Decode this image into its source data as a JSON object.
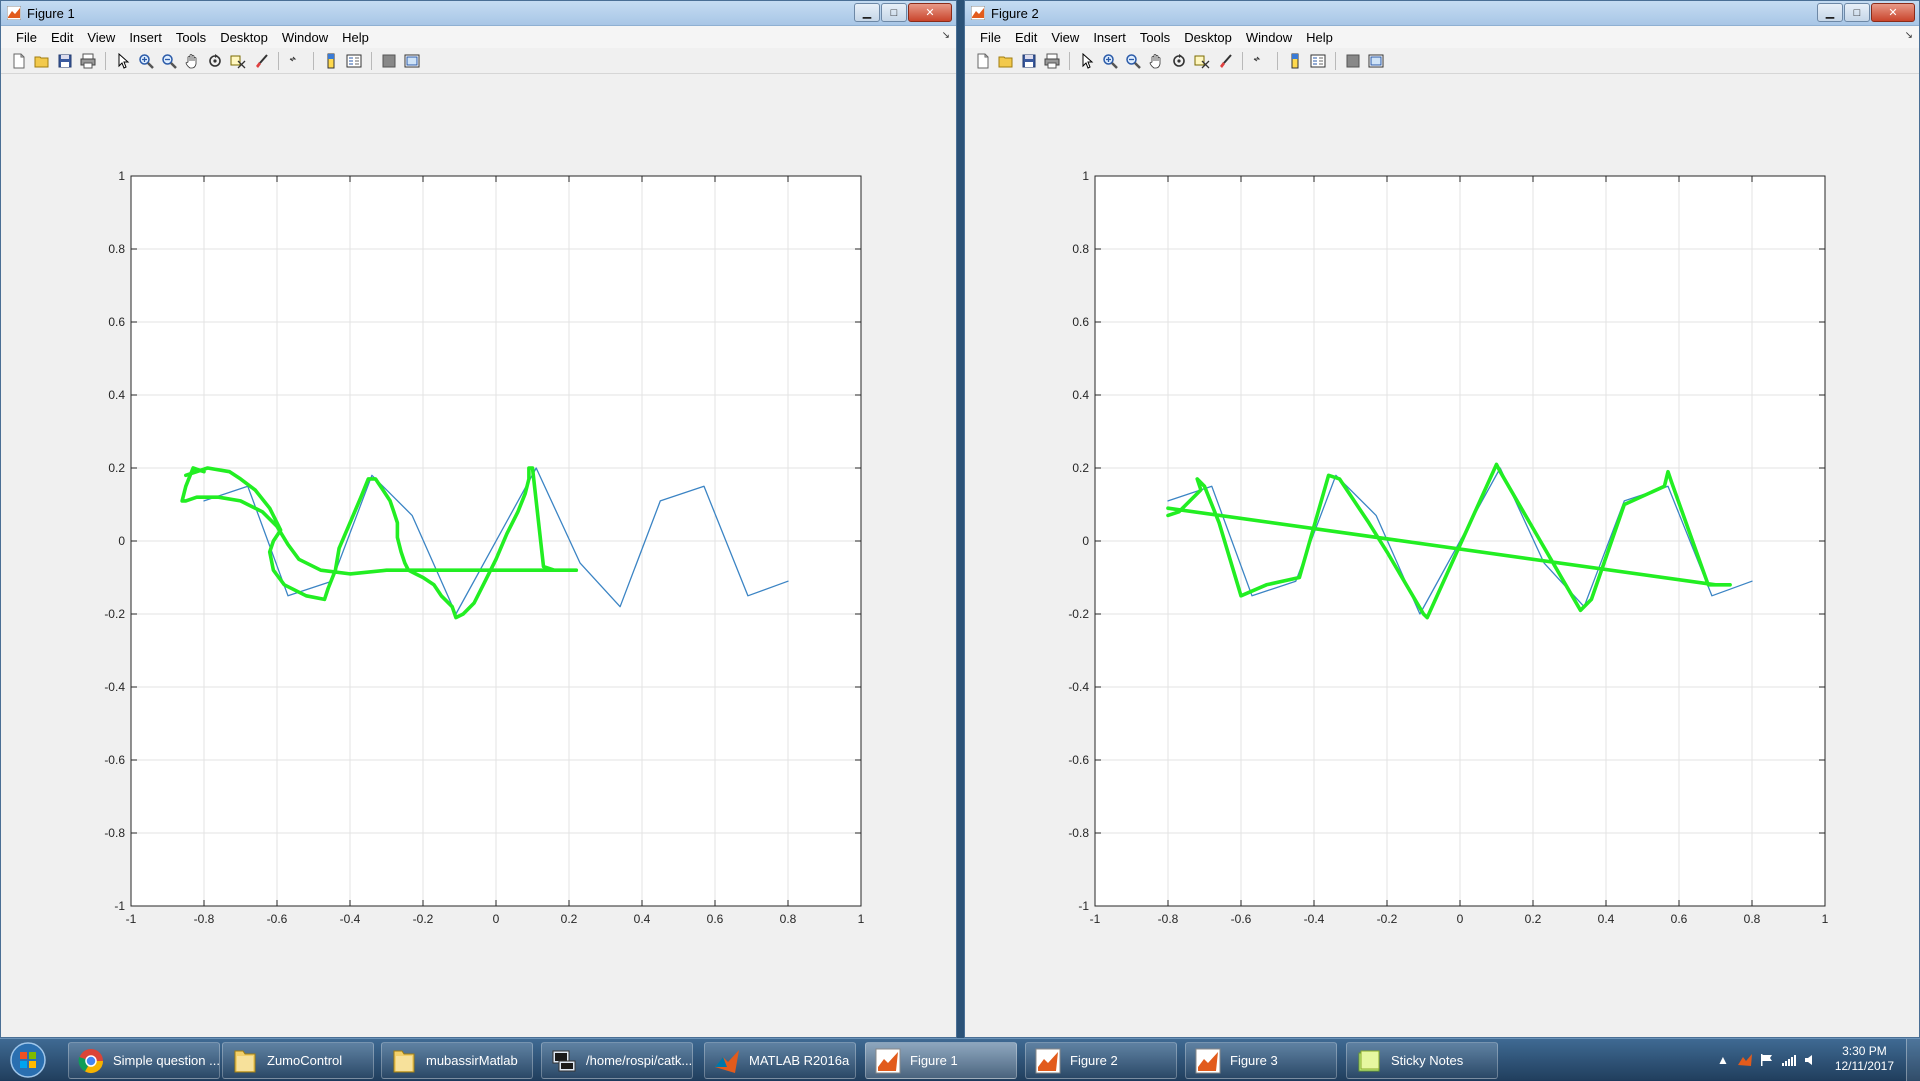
{
  "windows": [
    {
      "title": "Figure 1",
      "menu": [
        "File",
        "Edit",
        "View",
        "Insert",
        "Tools",
        "Desktop",
        "Window",
        "Help"
      ]
    },
    {
      "title": "Figure 2",
      "menu": [
        "File",
        "Edit",
        "View",
        "Insert",
        "Tools",
        "Desktop",
        "Window",
        "Help"
      ]
    }
  ],
  "toolbar_icons": [
    "new-figure-icon",
    "open-file-icon",
    "save-icon",
    "print-icon",
    "pointer-icon",
    "zoom-in-icon",
    "zoom-out-icon",
    "pan-icon",
    "rotate-icon",
    "data-cursor-icon",
    "brush-icon",
    "link-plot-icon",
    "colorbar-icon",
    "legend-icon",
    "hide-plot-tools-icon",
    "show-plot-tools-icon"
  ],
  "colors": {
    "blue_series": "#3b84c4",
    "green_series": "#22ee22",
    "axes_bg": "#ffffff",
    "grid": "#e3e3e3"
  },
  "chart_data": [
    {
      "type": "line",
      "xlim": [
        -1,
        1
      ],
      "ylim": [
        -1,
        1
      ],
      "xticks": [
        "-1",
        "-0.8",
        "-0.6",
        "-0.4",
        "-0.2",
        "0",
        "0.2",
        "0.4",
        "0.6",
        "0.8",
        "1"
      ],
      "yticks": [
        "1",
        "0.8",
        "0.6",
        "0.4",
        "0.2",
        "0",
        "-0.2",
        "-0.4",
        "-0.6",
        "-0.8",
        "-1"
      ],
      "grid": true,
      "series": [
        {
          "color": "blue",
          "x": [
            -0.8,
            -0.68,
            -0.57,
            -0.45,
            -0.34,
            -0.23,
            -0.11,
            0.11,
            0.23,
            0.34,
            0.45,
            0.57,
            0.69,
            0.8
          ],
          "y": [
            0.11,
            0.15,
            -0.15,
            -0.11,
            0.18,
            0.07,
            -0.2,
            0.2,
            -0.06,
            -0.18,
            0.11,
            0.15,
            -0.15,
            -0.11
          ]
        },
        {
          "color": "green",
          "x": [
            -0.85,
            -0.79,
            -0.73,
            -0.7,
            -0.66,
            -0.62,
            -0.6,
            -0.59,
            -0.61,
            -0.62,
            -0.61,
            -0.58,
            -0.52,
            -0.47,
            -0.46,
            -0.44,
            -0.43,
            -0.4,
            -0.37,
            -0.35,
            -0.33,
            -0.31,
            -0.29,
            -0.28,
            -0.27,
            -0.27,
            -0.26,
            -0.25,
            -0.24,
            -0.22,
            -0.2,
            -0.17,
            -0.15,
            -0.12,
            -0.11,
            -0.09,
            -0.06,
            -0.03,
            0.0,
            0.03,
            0.06,
            0.08,
            0.09,
            0.09,
            0.1,
            0.13,
            0.16,
            0.2,
            0.22,
            -0.15,
            -0.3,
            -0.4,
            -0.48,
            -0.54,
            -0.57,
            -0.6,
            -0.64,
            -0.7,
            -0.76,
            -0.82,
            -0.85,
            -0.86,
            -0.85,
            -0.83,
            -0.8
          ],
          "y": [
            0.18,
            0.2,
            0.19,
            0.17,
            0.14,
            0.09,
            0.05,
            0.03,
            0.0,
            -0.03,
            -0.08,
            -0.12,
            -0.15,
            -0.16,
            -0.13,
            -0.08,
            -0.02,
            0.05,
            0.12,
            0.17,
            0.17,
            0.14,
            0.11,
            0.08,
            0.05,
            0.01,
            -0.03,
            -0.06,
            -0.08,
            -0.09,
            -0.1,
            -0.12,
            -0.15,
            -0.18,
            -0.21,
            -0.2,
            -0.17,
            -0.11,
            -0.05,
            0.02,
            0.08,
            0.13,
            0.17,
            0.2,
            0.2,
            -0.07,
            -0.08,
            -0.08,
            -0.08,
            -0.08,
            -0.08,
            -0.09,
            -0.08,
            -0.05,
            -0.01,
            0.04,
            0.08,
            0.11,
            0.12,
            0.12,
            0.11,
            0.11,
            0.15,
            0.2,
            0.19
          ]
        }
      ]
    },
    {
      "type": "line",
      "xlim": [
        -1,
        1
      ],
      "ylim": [
        -1,
        1
      ],
      "xticks": [
        "-1",
        "-0.8",
        "-0.6",
        "-0.4",
        "-0.2",
        "0",
        "0.2",
        "0.4",
        "0.6",
        "0.8",
        "1"
      ],
      "yticks": [
        "1",
        "0.8",
        "0.6",
        "0.4",
        "0.2",
        "0",
        "-0.2",
        "-0.4",
        "-0.6",
        "-0.8",
        "-1"
      ],
      "grid": true,
      "series": [
        {
          "color": "blue",
          "x": [
            -0.8,
            -0.68,
            -0.57,
            -0.45,
            -0.34,
            -0.23,
            -0.11,
            0.11,
            0.23,
            0.34,
            0.45,
            0.57,
            0.69,
            0.8
          ],
          "y": [
            0.11,
            0.15,
            -0.15,
            -0.11,
            0.18,
            0.07,
            -0.2,
            0.2,
            -0.06,
            -0.18,
            0.11,
            0.15,
            -0.15,
            -0.11
          ]
        },
        {
          "color": "green",
          "x": [
            -0.8,
            -0.77,
            -0.71,
            -0.72,
            -0.7,
            -0.66,
            -0.6,
            -0.53,
            -0.44,
            -0.36,
            -0.33,
            -0.25,
            -0.2,
            -0.1,
            -0.09,
            0.1,
            0.11,
            0.33,
            0.36,
            0.45,
            0.56,
            0.57,
            0.58,
            0.68,
            0.74,
            0.7,
            -0.8
          ],
          "y": [
            0.07,
            0.08,
            0.14,
            0.17,
            0.15,
            0.05,
            -0.15,
            -0.12,
            -0.1,
            0.18,
            0.17,
            0.05,
            -0.03,
            -0.2,
            -0.21,
            0.21,
            0.19,
            -0.19,
            -0.16,
            0.1,
            0.15,
            0.19,
            0.16,
            -0.12,
            -0.12,
            -0.12,
            0.09
          ]
        }
      ]
    }
  ],
  "taskbar": {
    "items": [
      {
        "label": "Simple question ...",
        "icon": "chrome-icon"
      },
      {
        "label": "ZumoControl",
        "icon": "folder-icon"
      },
      {
        "label": "mubassirMatlab",
        "icon": "folder-icon"
      },
      {
        "label": "/home/rospi/catk...",
        "icon": "putty-icon"
      },
      {
        "label": "MATLAB R2016a",
        "icon": "matlab-icon"
      },
      {
        "label": "Figure 1",
        "icon": "matlab-figure-icon"
      },
      {
        "label": "Figure 2",
        "icon": "matlab-figure-icon"
      },
      {
        "label": "Figure 3",
        "icon": "matlab-figure-icon"
      },
      {
        "label": "Sticky Notes",
        "icon": "sticky-notes-icon"
      }
    ],
    "clock_time": "3:30 PM",
    "clock_date": "12/11/2017"
  }
}
